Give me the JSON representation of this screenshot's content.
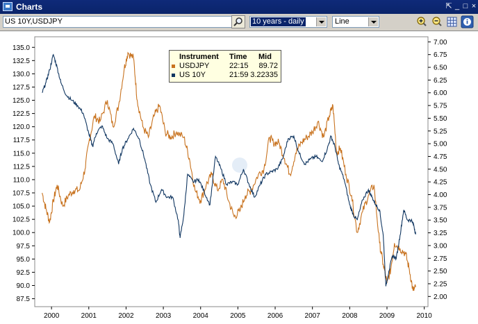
{
  "window": {
    "title": "Charts",
    "controls": [
      "⇱",
      "_",
      "□",
      "×"
    ]
  },
  "toolbar": {
    "symbols_value": "US 10Y,USDJPY",
    "period_value": "10 years - daily",
    "chart_type_value": "Line"
  },
  "legend": {
    "headers": [
      "Instrument",
      "Time",
      "Mid"
    ],
    "rows": [
      {
        "instrument": "USDJPY",
        "time": "22:15",
        "mid": "89.72",
        "color": "#c8721e"
      },
      {
        "instrument": "US 10Y",
        "time": "21:59",
        "mid": "3.22335",
        "color": "#0f3560"
      }
    ]
  },
  "chart_data": {
    "type": "line",
    "x_tick_labels": [
      "2000",
      "2001",
      "2002",
      "2003",
      "2004",
      "2005",
      "2006",
      "2007",
      "2008",
      "2009",
      "2010"
    ],
    "y_left": {
      "min": 86,
      "max": 137,
      "ticks": [
        "87.5",
        "90.0",
        "92.5",
        "95.0",
        "97.5",
        "100.0",
        "102.5",
        "105.0",
        "107.5",
        "110.0",
        "112.5",
        "115.0",
        "117.5",
        "120.0",
        "122.5",
        "125.0",
        "127.5",
        "130.0",
        "132.5",
        "135.0"
      ]
    },
    "y_right": {
      "min": 1.8,
      "max": 7.1,
      "ticks": [
        "2.00",
        "2.25",
        "2.50",
        "2.75",
        "3.00",
        "3.25",
        "3.50",
        "3.75",
        "4.00",
        "4.25",
        "4.50",
        "4.75",
        "5.00",
        "5.25",
        "5.50",
        "5.75",
        "6.00",
        "6.25",
        "6.50",
        "6.75",
        "7.00"
      ]
    },
    "x_range": [
      1999.55,
      2010.1
    ],
    "series": [
      {
        "name": "USDJPY",
        "axis": "left",
        "color": "#c8721e",
        "points": [
          [
            1999.75,
            107.5
          ],
          [
            1999.85,
            104.5
          ],
          [
            1999.95,
            102
          ],
          [
            2000.05,
            106
          ],
          [
            2000.15,
            109
          ],
          [
            2000.3,
            105
          ],
          [
            2000.45,
            107
          ],
          [
            2000.6,
            108
          ],
          [
            2000.75,
            108
          ],
          [
            2000.9,
            112
          ],
          [
            2001.0,
            117
          ],
          [
            2001.15,
            122
          ],
          [
            2001.3,
            121
          ],
          [
            2001.5,
            125
          ],
          [
            2001.65,
            120
          ],
          [
            2001.8,
            124
          ],
          [
            2001.95,
            131
          ],
          [
            2002.05,
            134
          ],
          [
            2002.2,
            133
          ],
          [
            2002.3,
            125
          ],
          [
            2002.45,
            120
          ],
          [
            2002.6,
            118
          ],
          [
            2002.75,
            122
          ],
          [
            2002.9,
            124
          ],
          [
            2003.05,
            119
          ],
          [
            2003.2,
            118
          ],
          [
            2003.35,
            119
          ],
          [
            2003.55,
            118
          ],
          [
            2003.7,
            114
          ],
          [
            2003.85,
            108
          ],
          [
            2004.0,
            106
          ],
          [
            2004.15,
            109
          ],
          [
            2004.3,
            111
          ],
          [
            2004.45,
            108
          ],
          [
            2004.6,
            110
          ],
          [
            2004.75,
            106
          ],
          [
            2004.9,
            103
          ],
          [
            2005.05,
            104
          ],
          [
            2005.2,
            107
          ],
          [
            2005.35,
            108
          ],
          [
            2005.55,
            111
          ],
          [
            2005.7,
            112
          ],
          [
            2005.85,
            118
          ],
          [
            2005.95,
            117
          ],
          [
            2006.1,
            117
          ],
          [
            2006.25,
            114
          ],
          [
            2006.4,
            111
          ],
          [
            2006.55,
            115
          ],
          [
            2006.7,
            117
          ],
          [
            2006.85,
            118
          ],
          [
            2007.0,
            119
          ],
          [
            2007.15,
            121
          ],
          [
            2007.3,
            118
          ],
          [
            2007.45,
            122
          ],
          [
            2007.55,
            124
          ],
          [
            2007.65,
            115
          ],
          [
            2007.75,
            116
          ],
          [
            2007.9,
            111
          ],
          [
            2008.05,
            107
          ],
          [
            2008.2,
            100
          ],
          [
            2008.35,
            104
          ],
          [
            2008.5,
            107
          ],
          [
            2008.65,
            109
          ],
          [
            2008.8,
            98
          ],
          [
            2008.9,
            94
          ],
          [
            2009.0,
            90.5
          ],
          [
            2009.1,
            93
          ],
          [
            2009.2,
            98
          ],
          [
            2009.35,
            97
          ],
          [
            2009.5,
            96
          ],
          [
            2009.6,
            93
          ],
          [
            2009.7,
            89
          ],
          [
            2009.77,
            89.7
          ]
        ]
      },
      {
        "name": "US 10Y",
        "axis": "right",
        "color": "#0f3560",
        "points": [
          [
            1999.75,
            6.0
          ],
          [
            1999.85,
            6.2
          ],
          [
            1999.95,
            6.45
          ],
          [
            2000.05,
            6.75
          ],
          [
            2000.15,
            6.5
          ],
          [
            2000.25,
            6.2
          ],
          [
            2000.4,
            5.95
          ],
          [
            2000.55,
            5.85
          ],
          [
            2000.7,
            5.75
          ],
          [
            2000.85,
            5.6
          ],
          [
            2001.0,
            5.2
          ],
          [
            2001.1,
            4.95
          ],
          [
            2001.2,
            5.2
          ],
          [
            2001.35,
            5.35
          ],
          [
            2001.5,
            5.1
          ],
          [
            2001.65,
            5.0
          ],
          [
            2001.8,
            4.6
          ],
          [
            2001.9,
            4.9
          ],
          [
            2002.05,
            5.1
          ],
          [
            2002.2,
            5.3
          ],
          [
            2002.35,
            5.1
          ],
          [
            2002.5,
            4.7
          ],
          [
            2002.65,
            4.2
          ],
          [
            2002.8,
            3.85
          ],
          [
            2002.95,
            4.1
          ],
          [
            2003.1,
            3.95
          ],
          [
            2003.25,
            3.95
          ],
          [
            2003.4,
            3.5
          ],
          [
            2003.45,
            3.15
          ],
          [
            2003.55,
            3.6
          ],
          [
            2003.65,
            4.4
          ],
          [
            2003.8,
            4.25
          ],
          [
            2003.95,
            4.3
          ],
          [
            2004.1,
            4.05
          ],
          [
            2004.25,
            3.8
          ],
          [
            2004.4,
            4.75
          ],
          [
            2004.55,
            4.5
          ],
          [
            2004.7,
            4.2
          ],
          [
            2004.85,
            4.25
          ],
          [
            2005.0,
            4.2
          ],
          [
            2005.15,
            4.5
          ],
          [
            2005.3,
            4.2
          ],
          [
            2005.45,
            3.95
          ],
          [
            2005.6,
            4.2
          ],
          [
            2005.75,
            4.4
          ],
          [
            2005.9,
            4.45
          ],
          [
            2006.05,
            4.5
          ],
          [
            2006.2,
            4.7
          ],
          [
            2006.35,
            5.1
          ],
          [
            2006.5,
            5.15
          ],
          [
            2006.65,
            4.8
          ],
          [
            2006.8,
            4.6
          ],
          [
            2006.95,
            4.7
          ],
          [
            2007.1,
            4.75
          ],
          [
            2007.25,
            4.65
          ],
          [
            2007.4,
            4.9
          ],
          [
            2007.5,
            5.15
          ],
          [
            2007.6,
            4.95
          ],
          [
            2007.7,
            4.6
          ],
          [
            2007.85,
            4.3
          ],
          [
            2008.0,
            3.8
          ],
          [
            2008.1,
            3.6
          ],
          [
            2008.2,
            3.5
          ],
          [
            2008.35,
            3.9
          ],
          [
            2008.5,
            4.1
          ],
          [
            2008.6,
            3.95
          ],
          [
            2008.7,
            3.8
          ],
          [
            2008.8,
            3.7
          ],
          [
            2008.9,
            3.2
          ],
          [
            2008.97,
            2.2
          ],
          [
            2009.05,
            2.5
          ],
          [
            2009.15,
            2.8
          ],
          [
            2009.25,
            2.75
          ],
          [
            2009.35,
            3.2
          ],
          [
            2009.45,
            3.7
          ],
          [
            2009.55,
            3.5
          ],
          [
            2009.65,
            3.5
          ],
          [
            2009.72,
            3.4
          ],
          [
            2009.77,
            3.22
          ]
        ]
      }
    ]
  }
}
